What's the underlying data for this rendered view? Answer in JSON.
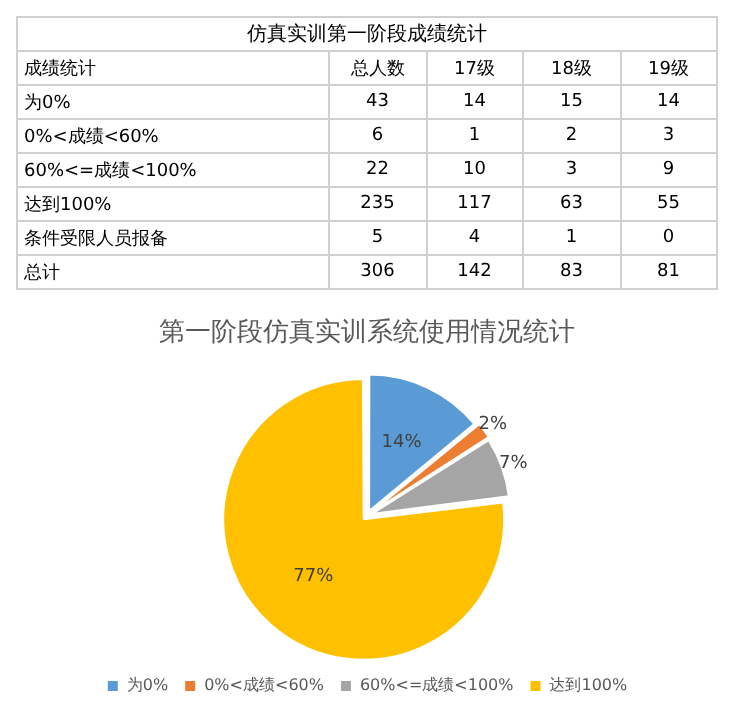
{
  "chart_data": [
    {
      "type": "heatmap",
      "title": "仿真实训第一阶段成绩统计",
      "ylabel": "成绩统计",
      "categories": [
        "总人数",
        "17级",
        "18级",
        "19级"
      ],
      "y_categories": [
        "为0%",
        "0%<成绩<60%",
        "60%<=成绩<100%",
        "达到100%",
        "条件受限人员报备",
        "总计"
      ],
      "data_labels": true,
      "cells": [
        [
          43,
          14,
          15,
          14
        ],
        [
          6,
          1,
          2,
          3
        ],
        [
          22,
          10,
          3,
          9
        ],
        [
          235,
          117,
          63,
          55
        ],
        [
          5,
          4,
          1,
          0
        ],
        [
          306,
          142,
          83,
          81
        ]
      ]
    },
    {
      "type": "pie",
      "title": "第一阶段仿真实训系统使用情况统计",
      "categories": [
        "为0%",
        "0%<成绩<60%",
        "60%<=成绩<100%",
        "达到100%"
      ],
      "values": [
        14,
        2,
        7,
        77
      ],
      "colors": [
        "#5b9bd5",
        "#ed7d31",
        "#a5a5a5",
        "#ffc000"
      ],
      "value_labels": [
        "14%",
        "2%",
        "7%",
        "77%"
      ],
      "legend": "bottom"
    }
  ]
}
